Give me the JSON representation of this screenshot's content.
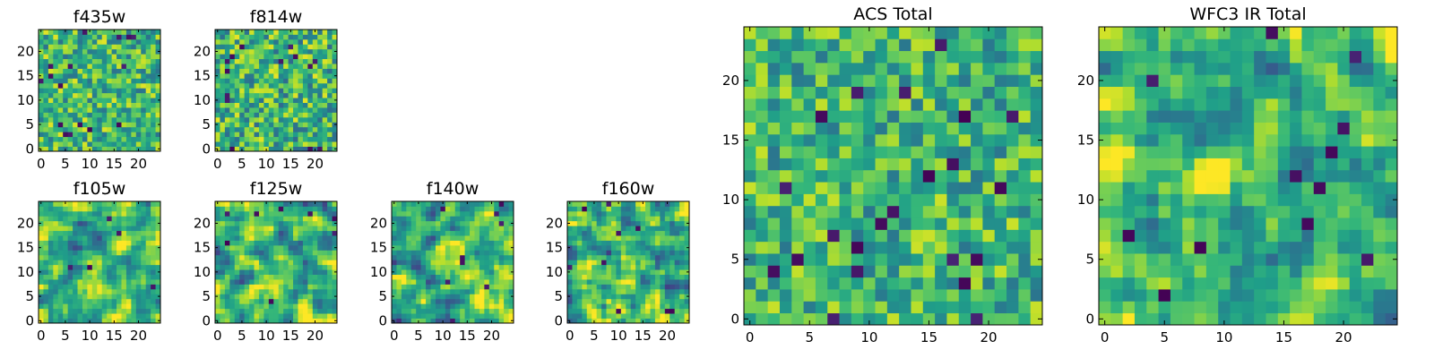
{
  "figure_title": "",
  "chart_data": [
    {
      "type": "heatmap",
      "title": "f435w",
      "grid_size": 25,
      "xlim": [
        0,
        24
      ],
      "ylim": [
        0,
        24
      ],
      "xticks": [
        0,
        5,
        10,
        15,
        20
      ],
      "yticks": [
        0,
        5,
        10,
        15,
        20
      ],
      "xtick_labels": [
        "0",
        "5",
        "10",
        "15",
        "20"
      ],
      "ytick_labels": [
        "0",
        "5",
        "10",
        "15",
        "20"
      ],
      "colormap": "viridis",
      "texture": "fine",
      "contrast": 0.45,
      "dark_pixel_count": 16
    },
    {
      "type": "heatmap",
      "title": "f814w",
      "grid_size": 25,
      "xlim": [
        0,
        24
      ],
      "ylim": [
        0,
        24
      ],
      "xticks": [
        0,
        5,
        10,
        15,
        20
      ],
      "yticks": [
        0,
        5,
        10,
        15,
        20
      ],
      "xtick_labels": [
        "0",
        "5",
        "10",
        "15",
        "20"
      ],
      "ytick_labels": [
        "0",
        "5",
        "10",
        "15",
        "20"
      ],
      "colormap": "viridis",
      "texture": "fine",
      "contrast": 0.5,
      "dark_pixel_count": 14
    },
    {
      "type": "heatmap",
      "title": "f105w",
      "grid_size": 25,
      "xlim": [
        0,
        24
      ],
      "ylim": [
        0,
        24
      ],
      "xticks": [
        0,
        5,
        10,
        15,
        20
      ],
      "yticks": [
        0,
        5,
        10,
        15,
        20
      ],
      "xtick_labels": [
        "0",
        "5",
        "10",
        "15",
        "20"
      ],
      "ytick_labels": [
        "0",
        "5",
        "10",
        "15",
        "20"
      ],
      "colormap": "viridis",
      "texture": "smooth",
      "contrast": 0.45,
      "dark_pixel_count": 5
    },
    {
      "type": "heatmap",
      "title": "f125w",
      "grid_size": 25,
      "xlim": [
        0,
        24
      ],
      "ylim": [
        0,
        24
      ],
      "xticks": [
        0,
        5,
        10,
        15,
        20
      ],
      "yticks": [
        0,
        5,
        10,
        15,
        20
      ],
      "xtick_labels": [
        "0",
        "5",
        "10",
        "15",
        "20"
      ],
      "ytick_labels": [
        "0",
        "5",
        "10",
        "15",
        "20"
      ],
      "colormap": "viridis",
      "texture": "smooth",
      "contrast": 0.5,
      "dark_pixel_count": 8
    },
    {
      "type": "heatmap",
      "title": "f140w",
      "grid_size": 25,
      "xlim": [
        0,
        24
      ],
      "ylim": [
        0,
        24
      ],
      "xticks": [
        0,
        5,
        10,
        15,
        20
      ],
      "yticks": [
        0,
        5,
        10,
        15,
        20
      ],
      "xtick_labels": [
        "0",
        "5",
        "10",
        "15",
        "20"
      ],
      "ytick_labels": [
        "0",
        "5",
        "10",
        "15",
        "20"
      ],
      "colormap": "viridis",
      "texture": "smooth",
      "contrast": 0.5,
      "dark_pixel_count": 9
    },
    {
      "type": "heatmap",
      "title": "f160w",
      "grid_size": 25,
      "xlim": [
        0,
        24
      ],
      "ylim": [
        0,
        24
      ],
      "xticks": [
        0,
        5,
        10,
        15,
        20
      ],
      "yticks": [
        0,
        5,
        10,
        15,
        20
      ],
      "xtick_labels": [
        "0",
        "5",
        "10",
        "15",
        "20"
      ],
      "ytick_labels": [
        "0",
        "5",
        "10",
        "15",
        "20"
      ],
      "colormap": "viridis",
      "texture": "smooth",
      "contrast": 0.5,
      "dark_pixel_count": 10
    },
    {
      "type": "heatmap",
      "title": "ACS Total",
      "grid_size": 25,
      "xlim": [
        0,
        24
      ],
      "ylim": [
        0,
        24
      ],
      "xticks": [
        0,
        5,
        10,
        15,
        20
      ],
      "yticks": [
        0,
        5,
        10,
        15,
        20
      ],
      "xtick_labels": [
        "0",
        "5",
        "10",
        "15",
        "20"
      ],
      "ytick_labels": [
        "0",
        "5",
        "10",
        "15",
        "20"
      ],
      "colormap": "viridis",
      "texture": "fine",
      "contrast": 0.42,
      "dark_pixel_count": 22
    },
    {
      "type": "heatmap",
      "title": "WFC3 IR Total",
      "grid_size": 25,
      "xlim": [
        0,
        24
      ],
      "ylim": [
        0,
        24
      ],
      "xticks": [
        0,
        5,
        10,
        15,
        20
      ],
      "yticks": [
        0,
        5,
        10,
        15,
        20
      ],
      "xtick_labels": [
        "0",
        "5",
        "10",
        "15",
        "20"
      ],
      "ytick_labels": [
        "0",
        "5",
        "10",
        "15",
        "20"
      ],
      "colormap": "viridis",
      "texture": "smooth",
      "contrast": 0.42,
      "dark_pixel_count": 12
    }
  ]
}
